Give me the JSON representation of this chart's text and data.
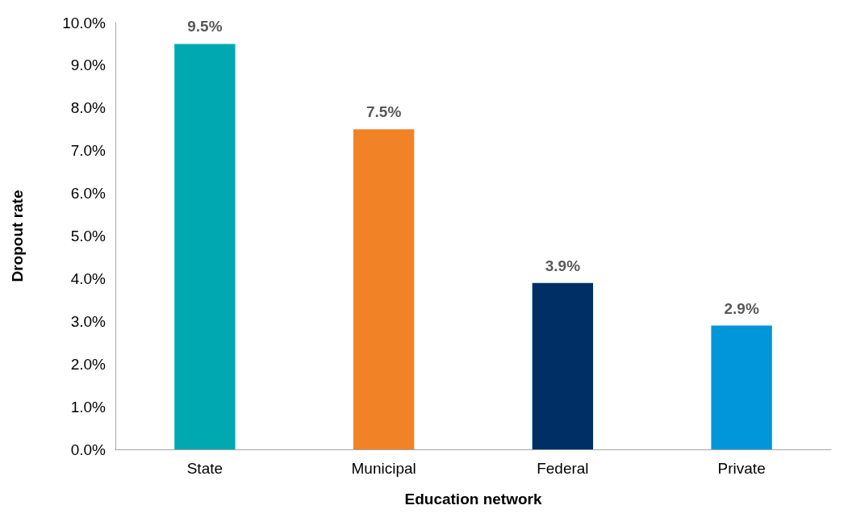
{
  "chart_data": {
    "type": "bar",
    "xlabel": "Education network",
    "ylabel": "Dropout rate",
    "categories": [
      "State",
      "Municipal",
      "Federal",
      "Private"
    ],
    "values": [
      9.5,
      7.5,
      3.9,
      2.9
    ],
    "colors": [
      "#00a9b1",
      "#f28226",
      "#002f66",
      "#0096d9"
    ],
    "value_labels": [
      "9.5%",
      "7.5%",
      "3.9%",
      "2.9%"
    ],
    "ylim": [
      0,
      10
    ],
    "yticks": [
      {
        "value": 0,
        "label": "0.0%"
      },
      {
        "value": 1,
        "label": "1.0%"
      },
      {
        "value": 2,
        "label": "2.0%"
      },
      {
        "value": 3,
        "label": "3.0%"
      },
      {
        "value": 4,
        "label": "4.0%"
      },
      {
        "value": 5,
        "label": "5.0%"
      },
      {
        "value": 6,
        "label": "6.0%"
      },
      {
        "value": 7,
        "label": "7.0%"
      },
      {
        "value": 8,
        "label": "8.0%"
      },
      {
        "value": 9,
        "label": "9.0%"
      },
      {
        "value": 10,
        "label": "10.0%"
      }
    ],
    "grid": false
  }
}
